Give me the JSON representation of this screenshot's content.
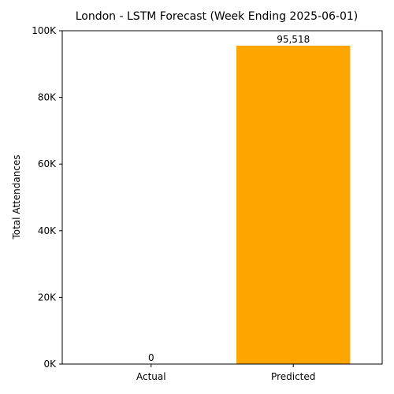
{
  "chart_data": {
    "type": "bar",
    "title": "London - LSTM Forecast (Week Ending 2025-06-01)",
    "xlabel": "",
    "ylabel": "Total Attendances",
    "categories": [
      "Actual",
      "Predicted"
    ],
    "values": [
      0,
      95518
    ],
    "data_labels": [
      "0",
      "95,518"
    ],
    "ylim": [
      0,
      100000
    ],
    "yticks": [
      0,
      20000,
      40000,
      60000,
      80000,
      100000
    ],
    "ytick_labels": [
      "0K",
      "20K",
      "40K",
      "60K",
      "80K",
      "100K"
    ],
    "bar_color": "#ffa500",
    "grid": false,
    "legend": "none"
  }
}
